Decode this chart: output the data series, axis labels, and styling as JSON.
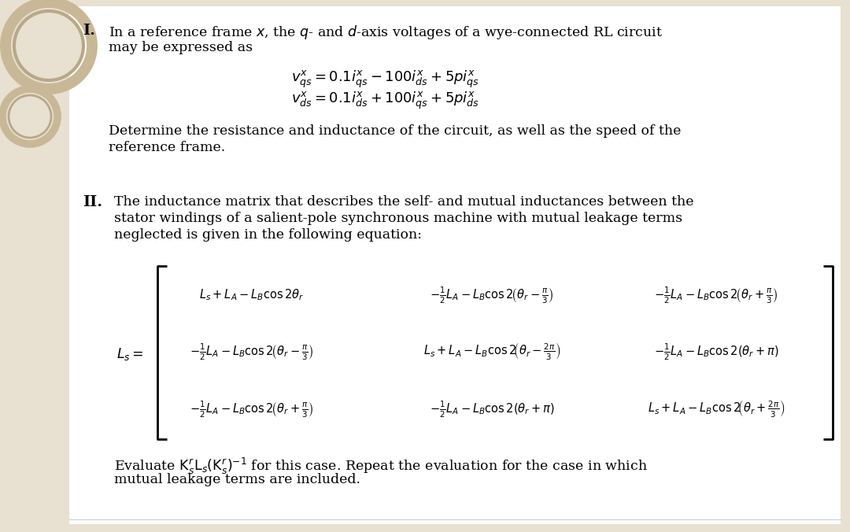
{
  "bg_color": "#e8e0d0",
  "page_color": "#ffffff",
  "text_color": "#000000",
  "left_bg": "#e8e0d0",
  "fs_body": 12.5,
  "fs_num": 14,
  "fs_mat": 10.5,
  "p1_num": "I.",
  "p1_line1": "In a reference frame $x$, the $q$- and $d$-axis voltages of a wye-connected RL circuit",
  "p1_line2": "may be expressed as",
  "p1_eq1": "$v_{qs}^{x} = 0.1i_{qs}^{x} - 100i_{ds}^{x} + 5pi_{qs}^{x}$",
  "p1_eq2": "$v_{ds}^{x} = 0.1i_{ds}^{x} + 100i_{qs}^{x} + 5pi_{ds}^{x}$",
  "p1_det1": "Determine the resistance and inductance of the circuit, as well as the speed of the",
  "p1_det2": "reference frame.",
  "p2_num": "II.",
  "p2_line1": "The inductance matrix that describes the self- and mutual inductances between the",
  "p2_line2": "stator windings of a salient-pole synchronous machine with mutual leakage terms",
  "p2_line3": "neglected is given in the following equation:",
  "mat_label": "$L_s =$",
  "m11": "$L_s + L_A - L_B \\cos 2\\theta_r$",
  "m12": "$-\\frac{1}{2}L_A - L_B \\cos 2\\!\\left(\\theta_r - \\frac{\\pi}{3}\\right)$",
  "m13": "$-\\frac{1}{2}L_A - L_B \\cos 2\\!\\left(\\theta_r + \\frac{\\pi}{3}\\right)$",
  "m21": "$-\\frac{1}{2}L_A - L_B \\cos 2\\!\\left(\\theta_r - \\frac{\\pi}{3}\\right)$",
  "m22": "$L_s + L_A - L_B \\cos 2\\!\\left(\\theta_r - \\frac{2\\pi}{3}\\right)$",
  "m23": "$-\\frac{1}{2}L_A - L_B \\cos 2(\\theta_r + \\pi)$",
  "m31": "$-\\frac{1}{2}L_A - L_B \\cos 2\\!\\left(\\theta_r + \\frac{\\pi}{3}\\right)$",
  "m32": "$-\\frac{1}{2}L_A - L_B \\cos 2(\\theta_r + \\pi)$",
  "m33": "$L_s + L_A - L_B \\cos 2\\!\\left(\\theta_r + \\frac{2\\pi}{3}\\right)$",
  "p2_eval1": "Evaluate $\\mathrm{K}_s^r\\mathrm{L}_s(\\mathrm{K}_s^r)^{-1}$ for this case. Repeat the evaluation for the case in which",
  "p2_eval2": "mutual leakage terms are included."
}
